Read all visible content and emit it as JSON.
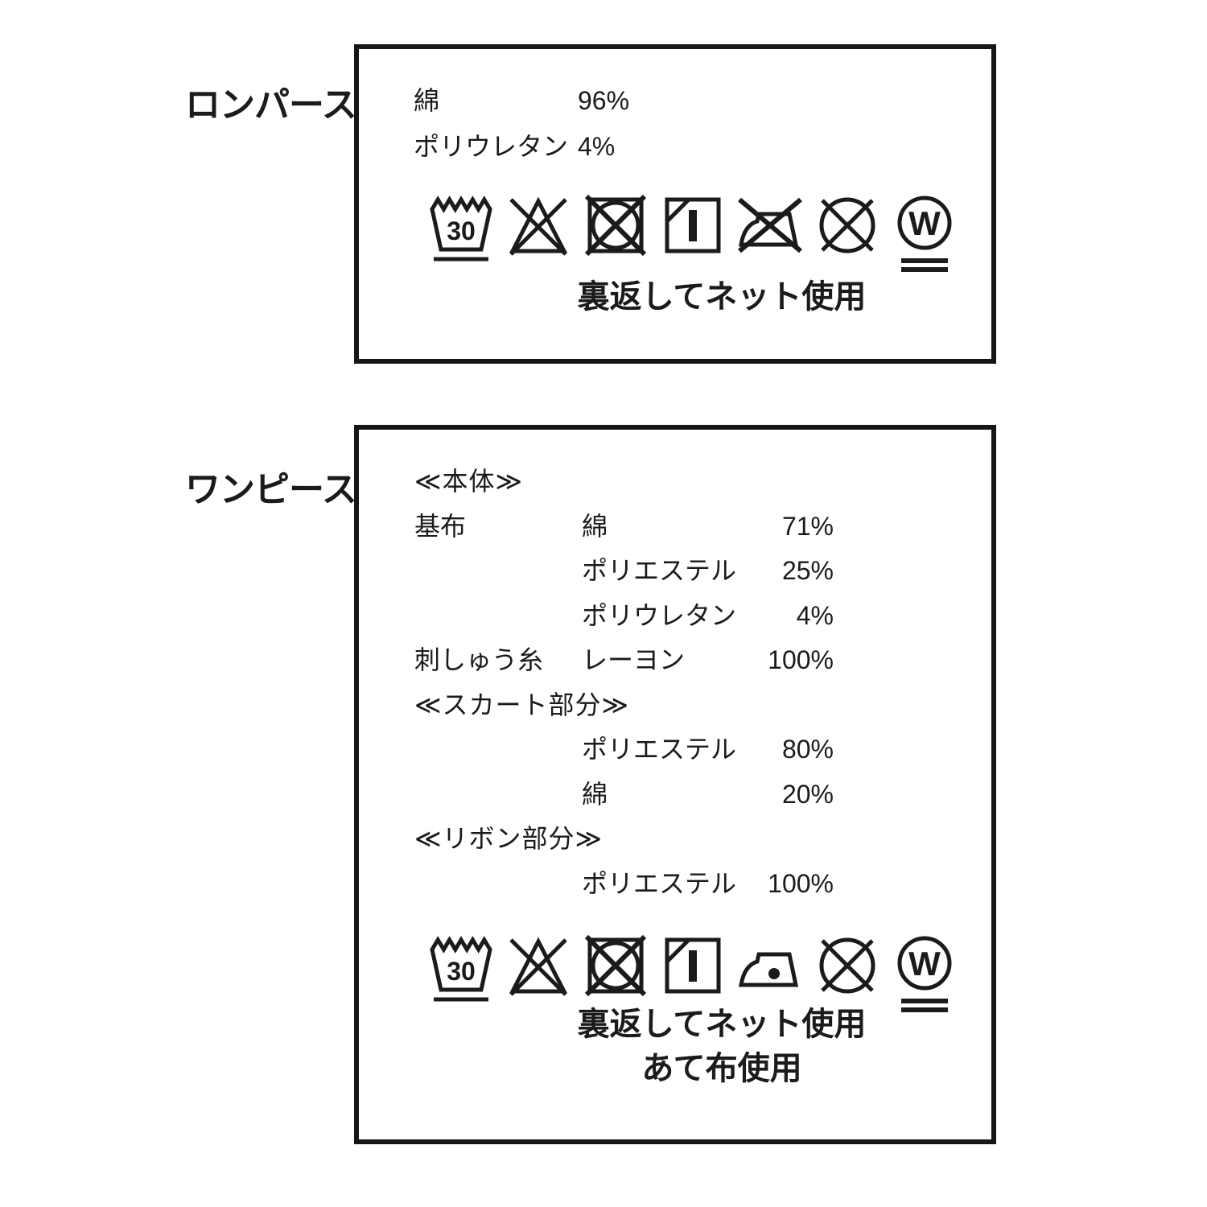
{
  "page": {
    "background": "#ffffff",
    "ink": "#1b1b1b",
    "border_color": "#161616"
  },
  "symbol_glyphs": {
    "wash_temp": "30",
    "wet_clean_letter": "W"
  },
  "sections": [
    {
      "id": "rompers",
      "label": "ロンパース",
      "lines": [
        {
          "part": "",
          "material": "綿",
          "percent": "96%"
        },
        {
          "part": "",
          "material": "ポリウレタン",
          "percent": "4%"
        }
      ],
      "care_symbols": [
        "wash-30-mild-icon",
        "do-not-bleach-icon",
        "do-not-tumble-dry-icon",
        "line-dry-in-shade-icon",
        "do-not-iron-icon",
        "do-not-dry-clean-icon",
        "wet-clean-very-mild-icon"
      ],
      "care_notes": [
        "裏返してネット使用"
      ]
    },
    {
      "id": "onepiece",
      "label": "ワンピース",
      "lines": [
        {
          "header": "≪本体≫"
        },
        {
          "part": "基布",
          "material": "綿",
          "percent": "71%"
        },
        {
          "part": "",
          "material": "ポリエステル",
          "percent": "25%"
        },
        {
          "part": "",
          "material": "ポリウレタン",
          "percent": "4%"
        },
        {
          "part": "刺しゅう糸",
          "material": "レーヨン",
          "percent": "100%"
        },
        {
          "header": "≪スカート部分≫"
        },
        {
          "part": "",
          "material": "ポリエステル",
          "percent": "80%"
        },
        {
          "part": "",
          "material": "綿",
          "percent": "20%"
        },
        {
          "header": "≪リボン部分≫"
        },
        {
          "part": "",
          "material": "ポリエステル",
          "percent": "100%"
        }
      ],
      "care_symbols": [
        "wash-30-mild-icon",
        "do-not-bleach-icon",
        "do-not-tumble-dry-icon",
        "line-dry-in-shade-icon",
        "iron-low-icon",
        "do-not-dry-clean-icon",
        "wet-clean-very-mild-icon"
      ],
      "care_notes": [
        "裏返してネット使用",
        "あて布使用"
      ]
    }
  ]
}
